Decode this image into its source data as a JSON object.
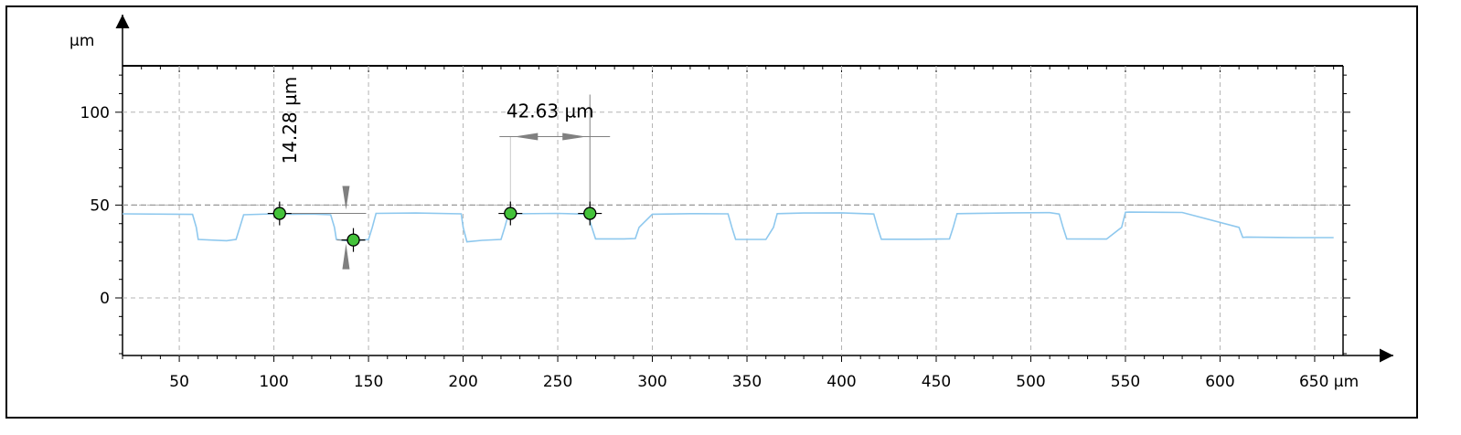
{
  "chart_data": {
    "type": "line",
    "title": "",
    "x_unit": "µm",
    "y_unit": "µm",
    "xlim": [
      20,
      665
    ],
    "ylim": [
      -31,
      125
    ],
    "x_ticks": [
      50,
      100,
      150,
      200,
      250,
      300,
      350,
      400,
      450,
      500,
      550,
      600,
      650
    ],
    "x_tick_labels": [
      "50",
      "100",
      "150",
      "200",
      "250",
      "300",
      "350",
      "400",
      "450",
      "500",
      "550",
      "600",
      "650 µm"
    ],
    "y_ticks": [
      0,
      50,
      100
    ],
    "y_tick_labels": [
      "0",
      "50",
      "100"
    ],
    "grid": true,
    "reference_line_y": 50,
    "series": [
      {
        "color": "#8ec8ee",
        "x": [
          20,
          57,
          59,
          60,
          75,
          80,
          82,
          84,
          100,
          110,
          120,
          130,
          132,
          133,
          140,
          150,
          152,
          154,
          175,
          199,
          200,
          202,
          210,
          220,
          222,
          224,
          250,
          266,
          268,
          270,
          285,
          291,
          293,
          300,
          320,
          340,
          342,
          344,
          360,
          364,
          366,
          380,
          400,
          417,
          419,
          421,
          440,
          457,
          459,
          461,
          490,
          510,
          515,
          517,
          519,
          540,
          548,
          550,
          552,
          580,
          610,
          612,
          614,
          640,
          660
        ],
        "y": [
          45.3,
          45,
          38,
          31.5,
          30.8,
          31.5,
          38,
          44.8,
          45.3,
          45.1,
          45.2,
          44.8,
          38,
          31.5,
          30.6,
          31.5,
          38,
          45.5,
          45.7,
          45.3,
          38,
          30.2,
          31,
          31.5,
          38,
          45.3,
          45.5,
          45.1,
          38,
          31.8,
          31.8,
          32,
          38,
          45.1,
          45.4,
          45.3,
          38,
          31.5,
          31.5,
          38,
          45.4,
          45.7,
          45.8,
          45.2,
          38,
          31.6,
          31.6,
          31.8,
          38,
          45.4,
          45.8,
          45.9,
          45.2,
          38,
          31.8,
          31.7,
          38,
          46.1,
          46.2,
          46,
          38,
          32.6,
          32.8,
          32.5,
          32.5
        ]
      }
    ],
    "markers": [
      {
        "x": 103,
        "y": 45.5
      },
      {
        "x": 142,
        "y": 31.2
      },
      {
        "x": 225,
        "y": 45.5
      },
      {
        "x": 267,
        "y": 45.5
      }
    ],
    "measurements": [
      {
        "label": "14.28 µm",
        "kind": "vertical",
        "x_from": 103,
        "x_to": 142,
        "y_from": 45.5,
        "y_to": 31.2
      },
      {
        "label": "42.63 µm",
        "kind": "horizontal",
        "x_from": 225,
        "x_to": 267,
        "y_from": 45.5,
        "y_to": 45.5
      }
    ],
    "colors": {
      "series": "#8ec8ee",
      "marker_fill": "#44c23a",
      "grid": "#b4b4b4",
      "measure": "#808080"
    }
  }
}
